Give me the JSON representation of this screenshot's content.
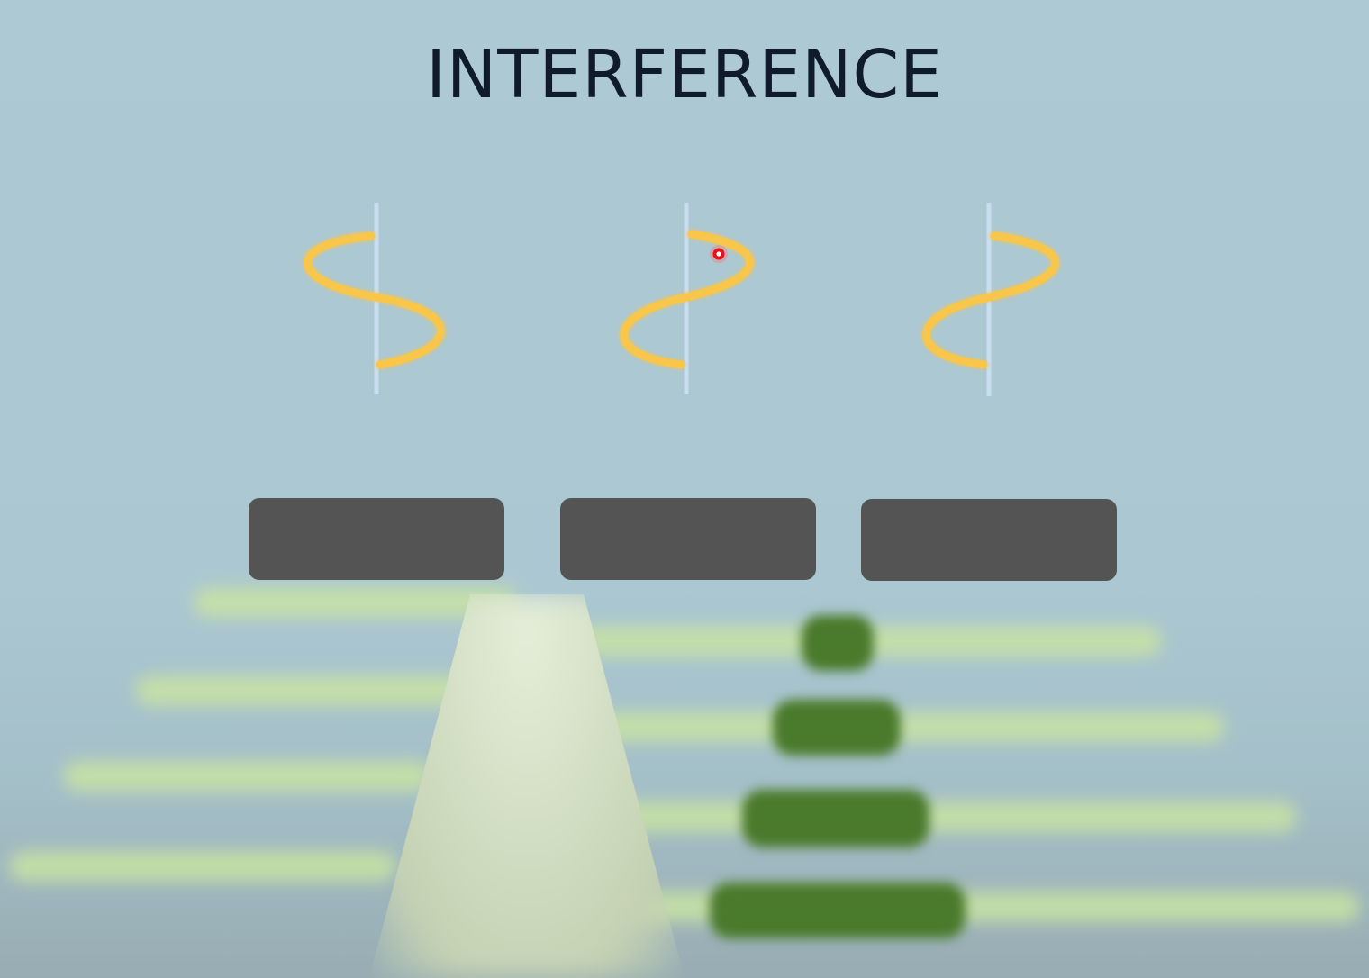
{
  "title": "INTERFERENCE",
  "waves": [
    {
      "name": "left",
      "phase": "starts-left-then-right"
    },
    {
      "name": "middle",
      "phase": "starts-right-then-left"
    },
    {
      "name": "right",
      "phase": "starts-right-then-left"
    }
  ],
  "slit_blocks": 3,
  "fringe_blocks": 4,
  "colors": {
    "background": "#adc9d3",
    "title_text": "#0f1a2b",
    "wave": "#f7c64a",
    "wave_axis": "#c9def0",
    "slit_block": "#545454",
    "fringe_bright": "#c9e3a3",
    "fringe_block": "#4a7a2c",
    "cursor": "#e8101a"
  },
  "icons": {
    "cursor": "red-pointer-dot-icon"
  }
}
